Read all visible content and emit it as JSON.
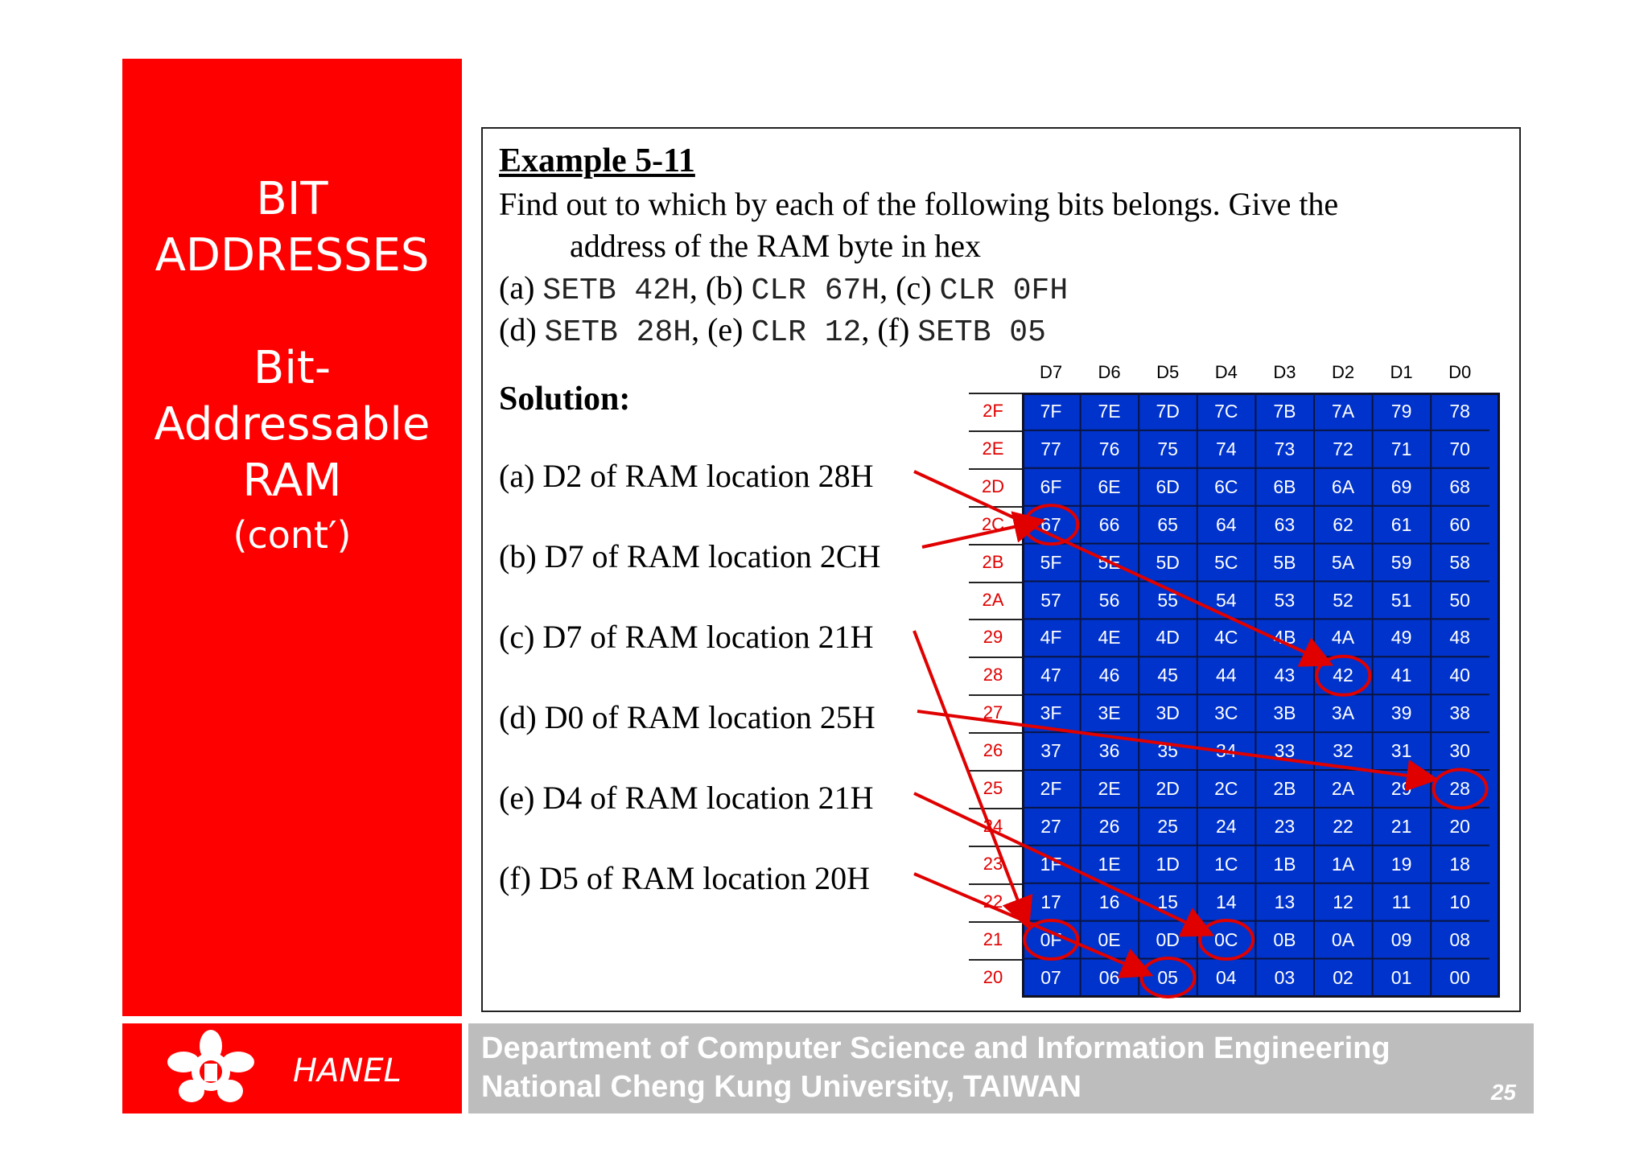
{
  "sidebar": {
    "title_lines": [
      "BIT",
      "ADDRESSES",
      "Bit-",
      "Addressable",
      "RAM"
    ],
    "cont": "(cont′)"
  },
  "example": {
    "title": "Example 5-11",
    "line1": "Find out to which by each of the following bits belongs. Give the",
    "line2": "address of the RAM byte in hex",
    "items": [
      {
        "label": "(a)",
        "code": "SETB 42H",
        "sep": ","
      },
      {
        "label": "(b)",
        "code": "CLR 67H",
        "sep": ","
      },
      {
        "label": "(c)",
        "code": "CLR 0FH",
        "sep": ""
      },
      {
        "label": "(d)",
        "code": "SETB 28H",
        "sep": ","
      },
      {
        "label": "(e)",
        "code": "CLR 12",
        "sep": ","
      },
      {
        "label": "(f)",
        "code": "SETB 05",
        "sep": ""
      }
    ],
    "solution_label": "Solution:",
    "answers": [
      "(a) D2 of RAM location 28H",
      "(b) D7 of RAM location 2CH",
      "(c) D7 of RAM location 21H",
      "(d) D0 of RAM location 25H",
      "(e) D4 of RAM location 21H",
      "(f) D5 of RAM location 20H"
    ]
  },
  "table": {
    "headers": [
      "D7",
      "D6",
      "D5",
      "D4",
      "D3",
      "D2",
      "D1",
      "D0"
    ],
    "rows": [
      {
        "addr": "2F",
        "bits": [
          "7F",
          "7E",
          "7D",
          "7C",
          "7B",
          "7A",
          "79",
          "78"
        ]
      },
      {
        "addr": "2E",
        "bits": [
          "77",
          "76",
          "75",
          "74",
          "73",
          "72",
          "71",
          "70"
        ]
      },
      {
        "addr": "2D",
        "bits": [
          "6F",
          "6E",
          "6D",
          "6C",
          "6B",
          "6A",
          "69",
          "68"
        ]
      },
      {
        "addr": "2C",
        "bits": [
          "67",
          "66",
          "65",
          "64",
          "63",
          "62",
          "61",
          "60"
        ]
      },
      {
        "addr": "2B",
        "bits": [
          "5F",
          "5E",
          "5D",
          "5C",
          "5B",
          "5A",
          "59",
          "58"
        ]
      },
      {
        "addr": "2A",
        "bits": [
          "57",
          "56",
          "55",
          "54",
          "53",
          "52",
          "51",
          "50"
        ]
      },
      {
        "addr": "29",
        "bits": [
          "4F",
          "4E",
          "4D",
          "4C",
          "4B",
          "4A",
          "49",
          "48"
        ]
      },
      {
        "addr": "28",
        "bits": [
          "47",
          "46",
          "45",
          "44",
          "43",
          "42",
          "41",
          "40"
        ]
      },
      {
        "addr": "27",
        "bits": [
          "3F",
          "3E",
          "3D",
          "3C",
          "3B",
          "3A",
          "39",
          "38"
        ]
      },
      {
        "addr": "26",
        "bits": [
          "37",
          "36",
          "35",
          "34",
          "33",
          "32",
          "31",
          "30"
        ]
      },
      {
        "addr": "25",
        "bits": [
          "2F",
          "2E",
          "2D",
          "2C",
          "2B",
          "2A",
          "29",
          "28"
        ]
      },
      {
        "addr": "24",
        "bits": [
          "27",
          "26",
          "25",
          "24",
          "23",
          "22",
          "21",
          "20"
        ]
      },
      {
        "addr": "23",
        "bits": [
          "1F",
          "1E",
          "1D",
          "1C",
          "1B",
          "1A",
          "19",
          "18"
        ]
      },
      {
        "addr": "22",
        "bits": [
          "17",
          "16",
          "15",
          "14",
          "13",
          "12",
          "11",
          "10"
        ]
      },
      {
        "addr": "21",
        "bits": [
          "0F",
          "0E",
          "0D",
          "0C",
          "0B",
          "0A",
          "09",
          "08"
        ]
      },
      {
        "addr": "20",
        "bits": [
          "07",
          "06",
          "05",
          "04",
          "03",
          "02",
          "01",
          "00"
        ]
      }
    ],
    "highlighted": [
      "67",
      "42",
      "28",
      "0F",
      "0C",
      "05"
    ],
    "colors": {
      "table_bg": "#0033cc",
      "row_label": "#e00000",
      "annotation": "#e00000"
    }
  },
  "footer": {
    "logo_icon": "ncku-logo-icon",
    "name": "HANEL",
    "line1": "Department of Computer Science and Information Engineering",
    "line2": "National Cheng Kung University, TAIWAN",
    "page": "25"
  }
}
